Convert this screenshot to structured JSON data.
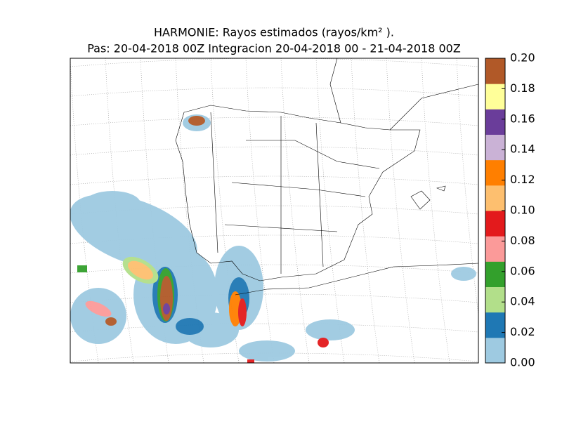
{
  "title": "HARMONIE: Rayos estimados  (rayos/km² ).",
  "subtitle": "Pas: 20-04-2018 00Z Integracion 20-04-2018 00 - 21-04-2018 00Z",
  "colorbar": {
    "colors": [
      "#9ecae1",
      "#1f78b4",
      "#b2df8a",
      "#33a02c",
      "#fb9a99",
      "#e31a1c",
      "#fdbf6f",
      "#ff7f00",
      "#cab2d6",
      "#6a3d9a",
      "#ffff99",
      "#b15928"
    ],
    "lim": [
      0,
      0.2
    ],
    "ticks": [
      {
        "value": 0,
        "label": "0.00"
      },
      {
        "value": 0.02,
        "label": "0.02"
      },
      {
        "value": 0.04,
        "label": "0.04"
      },
      {
        "value": 0.06,
        "label": "0.06"
      },
      {
        "value": 0.08,
        "label": "0.08"
      },
      {
        "value": 0.1,
        "label": "0.10"
      },
      {
        "value": 0.12,
        "label": "0.12"
      },
      {
        "value": 0.14,
        "label": "0.14"
      },
      {
        "value": 0.16,
        "label": "0.16"
      },
      {
        "value": 0.18,
        "label": "0.18"
      },
      {
        "value": 0.2,
        "label": "0.20"
      }
    ]
  }
}
